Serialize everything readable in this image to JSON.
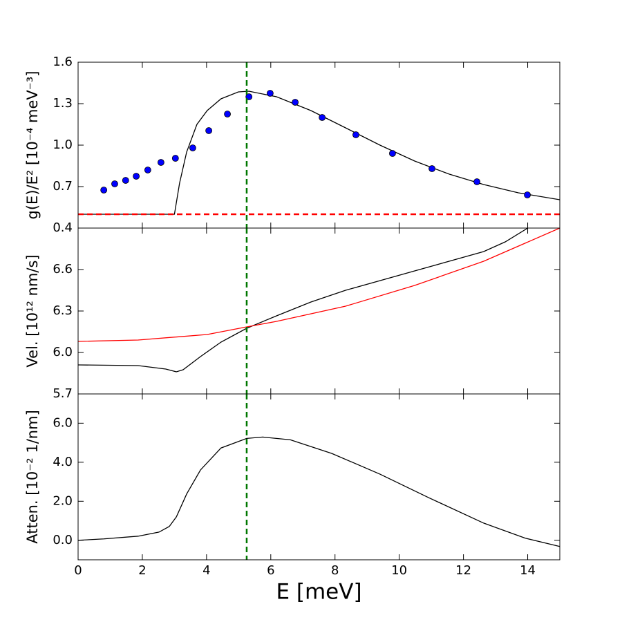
{
  "chart_data": [
    {
      "type": "scatter",
      "ylabel": "g(E)/E² [10⁻⁴ meV⁻³]",
      "xlim": [
        0,
        15
      ],
      "ylim": [
        0.4,
        1.6
      ],
      "yticks": [
        0.4,
        0.7,
        {
          "value": 1,
          "label": "1.0"
        },
        1.3,
        1.6
      ],
      "hline": 0.5,
      "hline_color": "#ff0000",
      "vline": 5.25,
      "vline_color": "#007700",
      "series": [
        {
          "mode": "markers",
          "color": "#0000ff",
          "x": [
            0.8,
            1.14,
            1.48,
            1.81,
            2.17,
            2.58,
            3.03,
            3.57,
            4.07,
            4.65,
            5.32,
            5.98,
            6.76,
            7.6,
            8.65,
            9.79,
            11.02,
            12.42,
            13.99
          ],
          "values": [
            0.675,
            0.72,
            0.745,
            0.775,
            0.82,
            0.875,
            0.905,
            0.98,
            1.105,
            1.225,
            1.35,
            1.375,
            1.31,
            1.2,
            1.075,
            0.94,
            0.83,
            0.735,
            0.64
          ]
        },
        {
          "mode": "line",
          "color": "#000000",
          "x": [
            0,
            3.0,
            3.16,
            3.38,
            3.7,
            4.02,
            4.45,
            4.99,
            5.32,
            6.18,
            7.25,
            8.33,
            9.4,
            10.48,
            11.56,
            12.63,
            13.71,
            15
          ],
          "values": [
            0.5,
            0.5,
            0.725,
            0.95,
            1.15,
            1.25,
            1.335,
            1.385,
            1.39,
            1.35,
            1.25,
            1.125,
            1.0,
            0.885,
            0.79,
            0.715,
            0.655,
            0.605
          ]
        }
      ]
    },
    {
      "type": "line",
      "ylabel": "Vel. [10¹² nm/s]",
      "xlim": [
        0,
        15
      ],
      "ylim": [
        5.7,
        6.9
      ],
      "yticks": [
        5.7,
        {
          "value": 6,
          "label": "6.0"
        },
        6.3,
        6.6
      ],
      "vline": 5.25,
      "vline_color": "#007700",
      "series": [
        {
          "mode": "line",
          "color": "#000000",
          "x": [
            0,
            1.87,
            2.73,
            3.06,
            3.27,
            3.81,
            4.45,
            5.25,
            6.18,
            7.25,
            8.33,
            10.48,
            12.63,
            13.3,
            14.0
          ],
          "values": [
            5.91,
            5.905,
            5.88,
            5.86,
            5.875,
            5.97,
            6.075,
            6.175,
            6.265,
            6.365,
            6.45,
            6.59,
            6.73,
            6.8,
            6.9
          ]
        },
        {
          "mode": "line",
          "color": "#ff0000",
          "x": [
            0,
            1.87,
            4.02,
            5.25,
            6.18,
            8.33,
            10.48,
            12.63,
            15
          ],
          "values": [
            6.08,
            6.09,
            6.13,
            6.185,
            6.225,
            6.335,
            6.485,
            6.66,
            6.9
          ]
        }
      ]
    },
    {
      "type": "line",
      "ylabel": "Atten. [10⁻² 1/nm]",
      "xlabel": "E [meV]",
      "xlim": [
        0,
        15
      ],
      "ylim": [
        -1,
        7.5
      ],
      "xticks": [
        0,
        2,
        4,
        6,
        8,
        10,
        12,
        14
      ],
      "yticks": [
        {
          "value": 0,
          "label": "0.0"
        },
        {
          "value": 2,
          "label": "2.0"
        },
        {
          "value": 4,
          "label": "4.0"
        },
        {
          "value": 6,
          "label": "6.0"
        }
      ],
      "vline": 5.25,
      "vline_color": "#007700",
      "series": [
        {
          "mode": "line",
          "color": "#000000",
          "x": [
            0,
            0.8,
            1.87,
            2.52,
            2.84,
            3.06,
            3.38,
            3.81,
            4.45,
            5.25,
            5.75,
            6.61,
            7.9,
            9.4,
            10.91,
            12.63,
            13.92,
            15
          ],
          "values": [
            0.0,
            0.07,
            0.21,
            0.42,
            0.71,
            1.2,
            2.37,
            3.6,
            4.73,
            5.22,
            5.29,
            5.15,
            4.45,
            3.39,
            2.19,
            0.88,
            0.11,
            -0.32
          ]
        }
      ]
    }
  ]
}
